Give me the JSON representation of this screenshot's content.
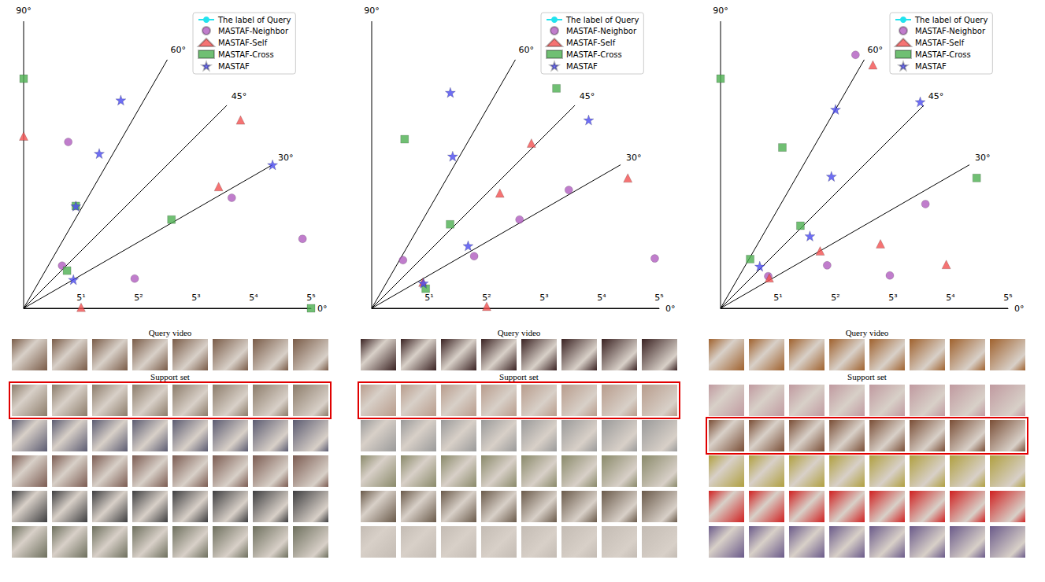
{
  "chart_data": [
    {
      "type": "polar_scatter",
      "grid": true,
      "legend": "upper right",
      "angle_lim": [
        0,
        90
      ],
      "angle_ticks": [
        {
          "value": 0,
          "label": "0°"
        },
        {
          "value": 30,
          "label": "30°"
        },
        {
          "value": 45,
          "label": "45°"
        },
        {
          "value": 60,
          "label": "60°"
        },
        {
          "value": 90,
          "label": "90°"
        }
      ],
      "radius_lim": [
        0,
        5
      ],
      "radius_ticks": [
        {
          "value": 1,
          "label": "5¹"
        },
        {
          "value": 2,
          "label": "5²"
        },
        {
          "value": 3,
          "label": "5³"
        },
        {
          "value": 4,
          "label": "5⁴"
        },
        {
          "value": 5,
          "label": "5⁵"
        }
      ],
      "query_label": {
        "name": "The label of Query",
        "color": "#22e3ee",
        "radius": 1
      },
      "series": [
        {
          "name": "MASTAF-Neighbor",
          "color": "#b05cbf",
          "marker": "circle",
          "values": [
            [
              3.0,
              75
            ],
            [
              4.1,
              28
            ],
            [
              5.0,
              14
            ],
            [
              1.0,
              48
            ],
            [
              2.0,
              15
            ]
          ]
        },
        {
          "name": "MASTAF-Self",
          "color": "#f25050",
          "marker": "triangle",
          "values": [
            [
              3.0,
              90
            ],
            [
              5.0,
              41
            ],
            [
              4.0,
              32
            ],
            [
              1.0,
              1
            ]
          ]
        },
        {
          "name": "MASTAF-Cross",
          "color": "#4caf50",
          "marker": "square",
          "values": [
            [
              4.0,
              90
            ],
            [
              2.0,
              63
            ],
            [
              3.0,
              31
            ],
            [
              1.0,
              41
            ],
            [
              5.0,
              0
            ]
          ]
        },
        {
          "name": "MASTAF",
          "color": "#4a4af0",
          "marker": "star",
          "values": [
            [
              4.0,
              65
            ],
            [
              3.0,
              64
            ],
            [
              5.0,
              30
            ],
            [
              2.0,
              63
            ],
            [
              1.0,
              30
            ]
          ]
        }
      ]
    },
    {
      "type": "polar_scatter",
      "grid": true,
      "legend": "upper right",
      "angle_lim": [
        0,
        90
      ],
      "angle_ticks": [
        {
          "value": 0,
          "label": "0°"
        },
        {
          "value": 30,
          "label": "30°"
        },
        {
          "value": 45,
          "label": "45°"
        },
        {
          "value": 60,
          "label": "60°"
        },
        {
          "value": 90,
          "label": "90°"
        }
      ],
      "radius_lim": [
        0,
        5
      ],
      "radius_ticks": [
        {
          "value": 1,
          "label": "5¹"
        },
        {
          "value": 2,
          "label": "5²"
        },
        {
          "value": 3,
          "label": "5³"
        },
        {
          "value": 4,
          "label": "5⁴"
        },
        {
          "value": 5,
          "label": "5⁵"
        }
      ],
      "query_label": {
        "name": "The label of Query",
        "color": "#22e3ee",
        "radius": 1
      },
      "series": [
        {
          "name": "MASTAF-Neighbor",
          "color": "#b05cbf",
          "marker": "circle",
          "values": [
            [
              1.0,
              57
            ],
            [
              2.0,
              27
            ],
            [
              3.0,
              31
            ],
            [
              4.0,
              31
            ],
            [
              5.0,
              10
            ]
          ]
        },
        {
          "name": "MASTAF-Self",
          "color": "#f25050",
          "marker": "triangle",
          "values": [
            [
              1.0,
              27
            ],
            [
              2.0,
              1
            ],
            [
              3.0,
              42
            ],
            [
              4.0,
              46
            ],
            [
              5.0,
              27
            ]
          ]
        },
        {
          "name": "MASTAF-Cross",
          "color": "#4caf50",
          "marker": "square",
          "values": [
            [
              1.0,
              20
            ],
            [
              2.0,
              47
            ],
            [
              3.0,
              79
            ],
            [
              5.0,
              50
            ]
          ]
        },
        {
          "name": "MASTAF",
          "color": "#4a4af0",
          "marker": "star",
          "values": [
            [
              1.0,
              26
            ],
            [
              2.0,
              33
            ],
            [
              3.0,
              62
            ],
            [
              4.0,
              70
            ],
            [
              5.0,
              41
            ]
          ]
        }
      ]
    },
    {
      "type": "polar_scatter",
      "grid": true,
      "legend": "upper right",
      "angle_lim": [
        0,
        90
      ],
      "angle_ticks": [
        {
          "value": 0,
          "label": "0°"
        },
        {
          "value": 30,
          "label": "30°"
        },
        {
          "value": 45,
          "label": "45°"
        },
        {
          "value": 60,
          "label": "60°"
        },
        {
          "value": 90,
          "label": "90°"
        }
      ],
      "radius_lim": [
        0,
        5
      ],
      "radius_ticks": [
        {
          "value": 1,
          "label": "5¹"
        },
        {
          "value": 2,
          "label": "5²"
        },
        {
          "value": 3,
          "label": "5³"
        },
        {
          "value": 4,
          "label": "5⁴"
        },
        {
          "value": 5,
          "label": "5⁵"
        }
      ],
      "query_label": {
        "name": "The label of Query",
        "color": "#22e3ee",
        "radius": 2
      },
      "series": [
        {
          "name": "MASTAF-Neighbor",
          "color": "#b05cbf",
          "marker": "circle",
          "values": [
            [
              1.0,
              34
            ],
            [
              2.0,
              22
            ],
            [
              3.0,
              11
            ],
            [
              4.0,
              27
            ],
            [
              5.0,
              62
            ]
          ]
        },
        {
          "name": "MASTAF-Self",
          "color": "#f25050",
          "marker": "triangle",
          "values": [
            [
              1.0,
              32
            ],
            [
              2.0,
              30
            ],
            [
              3.0,
              22
            ],
            [
              4.0,
              11
            ],
            [
              5.0,
              58
            ]
          ]
        },
        {
          "name": "MASTAF-Cross",
          "color": "#4caf50",
          "marker": "square",
          "values": [
            [
              1.0,
              59
            ],
            [
              2.0,
              46
            ],
            [
              3.0,
              69
            ],
            [
              4.0,
              90
            ],
            [
              5.0,
              27
            ]
          ]
        },
        {
          "name": "MASTAF",
          "color": "#4a4af0",
          "marker": "star",
          "values": [
            [
              1.0,
              47
            ],
            [
              2.0,
              39
            ],
            [
              3.0,
              50
            ],
            [
              4.0,
              60
            ],
            [
              5.0,
              46
            ]
          ]
        }
      ]
    }
  ],
  "panels": [
    {
      "query_video": "Query video",
      "support_set": "Support set",
      "frames_per_video": 8,
      "support_videos": 5,
      "match": 0
    },
    {
      "query_video": "Query video",
      "support_set": "Support set",
      "frames_per_video": 8,
      "support_videos": 5,
      "match": 0
    },
    {
      "query_video": "Query video",
      "support_set": "Support set",
      "frames_per_video": 8,
      "support_videos": 5,
      "match": 1
    }
  ]
}
